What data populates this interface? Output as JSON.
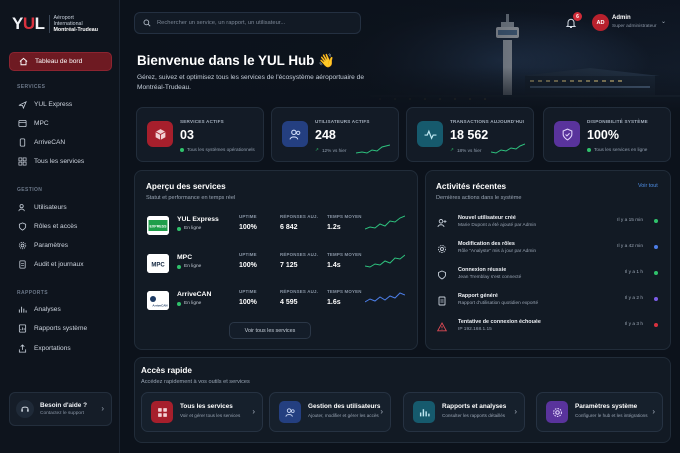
{
  "brand": {
    "mark": "YUL",
    "line1": "Aéroport",
    "line2": "International",
    "line3": "Montréal-Trudeau"
  },
  "sidebar": {
    "active": {
      "label": "Tableau de bord",
      "icon": "home-icon"
    },
    "sections": [
      {
        "title": "SERVICES",
        "items": [
          {
            "label": "YUL Express",
            "icon": "plane-icon"
          },
          {
            "label": "MPC",
            "icon": "grid-icon"
          },
          {
            "label": "ArriveCAN",
            "icon": "phone-icon"
          },
          {
            "label": "Tous les services",
            "icon": "apps-icon"
          }
        ]
      },
      {
        "title": "GESTION",
        "items": [
          {
            "label": "Utilisateurs",
            "icon": "users-icon"
          },
          {
            "label": "Rôles et accès",
            "icon": "shield-icon"
          },
          {
            "label": "Paramètres",
            "icon": "gear-icon"
          },
          {
            "label": "Audit et journaux",
            "icon": "doc-icon"
          }
        ]
      },
      {
        "title": "RAPPORTS",
        "items": [
          {
            "label": "Analyses",
            "icon": "chart-icon"
          },
          {
            "label": "Rapports système",
            "icon": "report-icon"
          },
          {
            "label": "Exportations",
            "icon": "export-icon"
          }
        ]
      }
    ],
    "help": {
      "title": "Besoin d'aide ?",
      "subtitle": "Contactez le support",
      "arrow": "›"
    }
  },
  "topbar": {
    "search_placeholder": "Rechercher un service, un rapport, un utilisateur...",
    "notifications": "6",
    "user": {
      "initials": "AD",
      "name": "Admin",
      "role": "Super administrateur",
      "chevron": "⌄"
    }
  },
  "hero": {
    "title": "Bienvenue dans le YUL Hub 👋",
    "subtitle": "Gérez, suivez et optimisez tous les services de l'écosystème aéroportuaire de Montréal-Trudeau."
  },
  "stats": [
    {
      "label": "SERVICES ACTIFS",
      "value": "03",
      "note": "Tous les systèmes opérationnels",
      "icon": "cube-icon",
      "color": "#c8283a",
      "dot": "#2fc26b"
    },
    {
      "label": "UTILISATEURS ACTIFS",
      "value": "248",
      "note": "12% vs hier",
      "icon": "users-icon",
      "color": "#2d4f9e",
      "dot": "#2fc26b"
    },
    {
      "label": "TRANSACTIONS AUJOURD'HUI",
      "value": "18 562",
      "note": "18% vs hier",
      "icon": "pulse-icon",
      "color": "#1b6f86",
      "dot": "#2fc26b"
    },
    {
      "label": "DISPONIBILITÉ SYSTÈME",
      "value": "100%",
      "note": "Tous les services en ligne",
      "icon": "shield-check-icon",
      "color": "#6a3fb6",
      "dot": "#2fc26b"
    }
  ],
  "services_panel": {
    "title": "Aperçu des services",
    "subtitle": "Statut et performance en temps réel",
    "col_uptime": "UPTIME",
    "col_responses": "RÉPONSES AUJ.",
    "col_time": "TEMPS MOYEN",
    "rows": [
      {
        "name": "YUL Express",
        "status": "En ligne",
        "uptime": "100%",
        "responses": "6 842",
        "time": "1.2s",
        "logo": "EXPRESS",
        "chart_color": "#2ec27e"
      },
      {
        "name": "MPC",
        "status": "En ligne",
        "uptime": "100%",
        "responses": "7 125",
        "time": "1.4s",
        "logo": "MPC",
        "chart_color": "#2ec27e"
      },
      {
        "name": "ArriveCAN",
        "status": "En ligne",
        "uptime": "100%",
        "responses": "4 595",
        "time": "1.6s",
        "logo": "ArriveCAN",
        "chart_color": "#4c7ee8"
      }
    ],
    "button": "Voir tous les services"
  },
  "activity_panel": {
    "title": "Activités récentes",
    "subtitle": "Dernières actions dans le système",
    "link": "Voir tout",
    "items": [
      {
        "title": "Nouvel utilisateur créé",
        "sub": "Marie Dupont a été ajouté par Admin",
        "time": "Il y a 15 min",
        "icon": "user-plus-icon",
        "dot": "#2fc26b"
      },
      {
        "title": "Modification des rôles",
        "sub": "Rôle \"Analyste\" mis à jour par Admin",
        "time": "Il y a 42 min",
        "icon": "gear-icon",
        "dot": "#4c7ee8"
      },
      {
        "title": "Connexion réussie",
        "sub": "Jean Tremblay s'est connecté",
        "time": "Il y a 1 h",
        "icon": "shield-icon",
        "dot": "#2fc26b"
      },
      {
        "title": "Rapport généré",
        "sub": "Rapport d'utilisation quotidien exporté",
        "time": "Il y a 2 h",
        "icon": "doc-icon",
        "dot": "#7b5ce8"
      },
      {
        "title": "Tentative de connexion échouée",
        "sub": "IP 192.168.1.15",
        "time": "Il y a 3 h",
        "icon": "warning-icon",
        "dot": "#d8313e"
      }
    ]
  },
  "quick_access": {
    "title": "Accès rapide",
    "subtitle": "Accédez rapidement à vos outils et services",
    "cards": [
      {
        "title": "Tous les services",
        "sub": "Voir et gérer tous les services",
        "icon": "apps-icon",
        "color": "#b8212d"
      },
      {
        "title": "Gestion des utilisateurs",
        "sub": "Ajouter, modifier et gérer les accès",
        "icon": "users-icon",
        "color": "#2d4f9e"
      },
      {
        "title": "Rapports et analyses",
        "sub": "Consulter les rapports détaillés",
        "icon": "chart-icon",
        "color": "#1b6f86"
      },
      {
        "title": "Paramètres système",
        "sub": "Configurer le hub et les intégrations",
        "icon": "gear-icon",
        "color": "#6a3fb6"
      }
    ],
    "arrow": "›"
  }
}
